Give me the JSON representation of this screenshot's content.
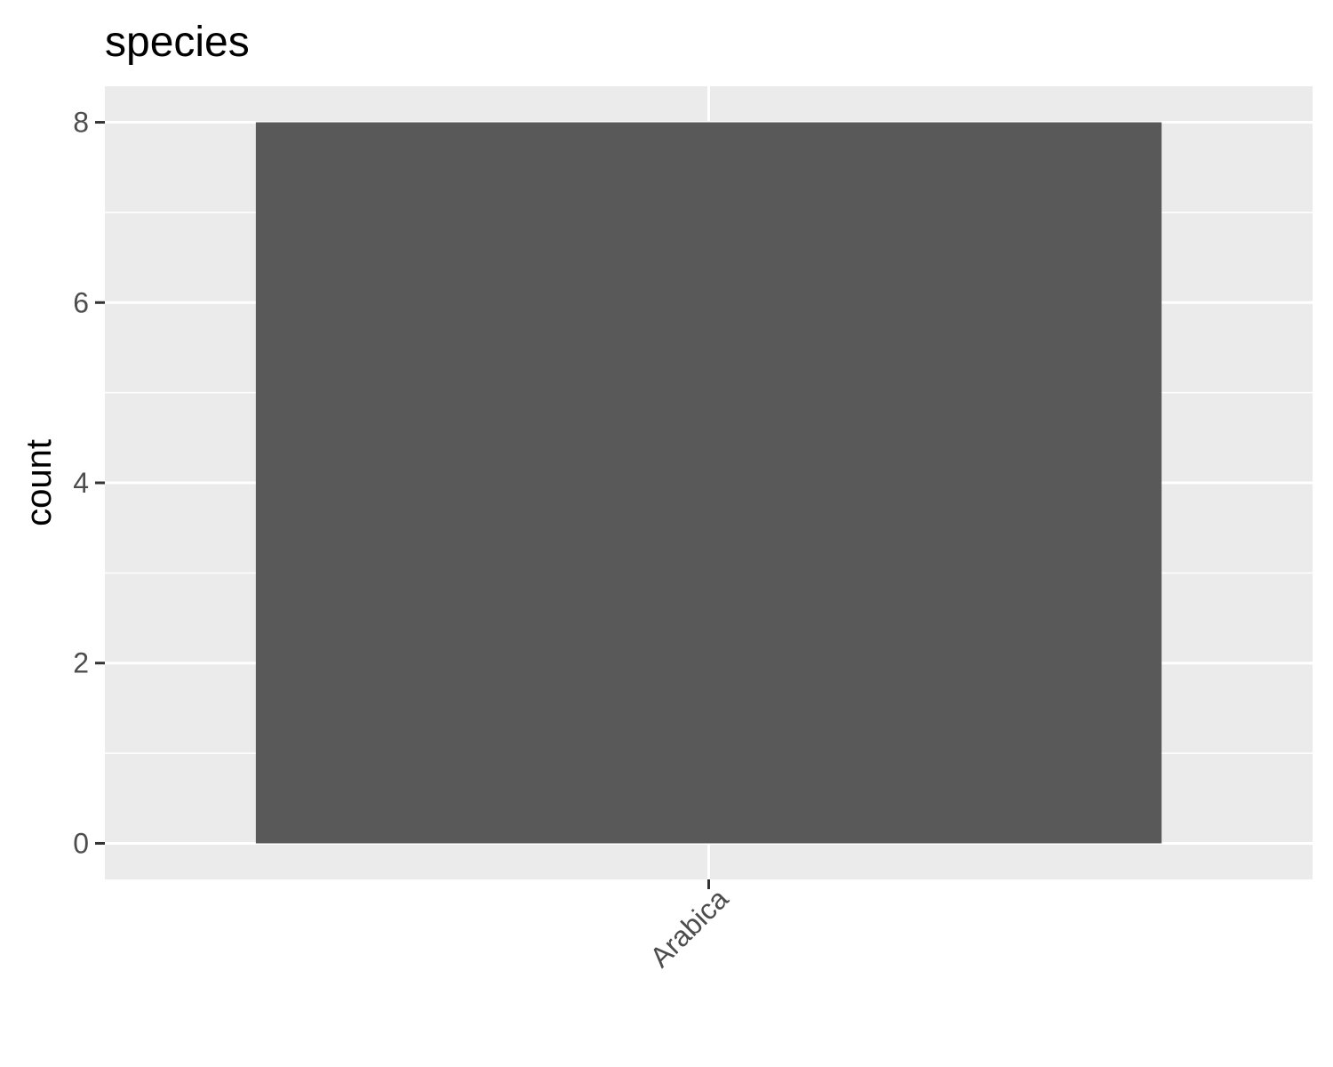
{
  "chart_data": {
    "type": "bar",
    "title": "species",
    "xlabel": "",
    "ylabel": "count",
    "categories": [
      "Arabica"
    ],
    "values": [
      8
    ],
    "ylim": [
      -0.4,
      8.4
    ],
    "yticks": [
      0,
      2,
      4,
      6,
      8
    ],
    "grid": true,
    "legend": "none",
    "colors": {
      "bar": "#595959",
      "panel": "#ebebeb",
      "grid": "#ffffff",
      "tick_text": "#4d4d4d",
      "tick_mark": "#333333"
    }
  }
}
